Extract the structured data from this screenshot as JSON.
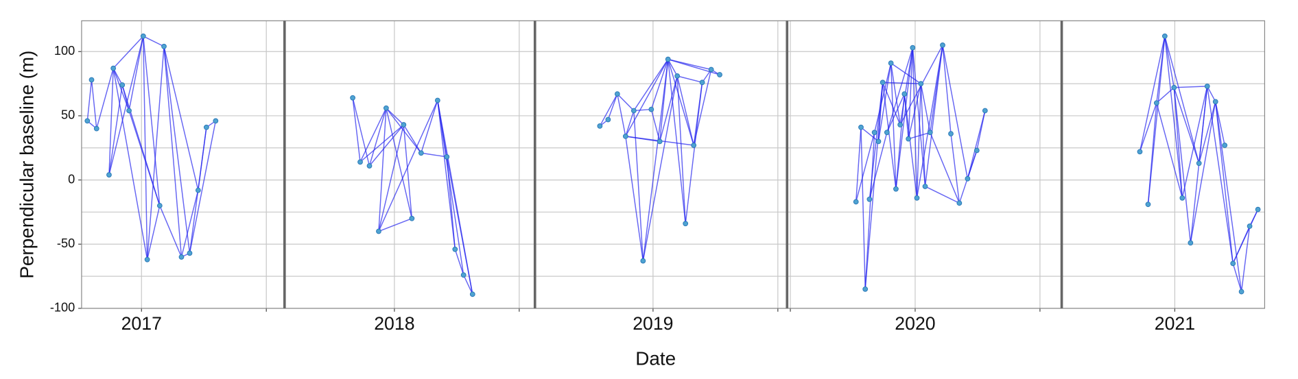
{
  "chart_data": {
    "type": "network",
    "ylabel": "Perpendicular baseline (m)",
    "xlabel": "Date",
    "ylim": [
      -100,
      124
    ],
    "yticks": [
      -100,
      -50,
      0,
      50,
      100
    ],
    "minor_yticks": [
      -75,
      -25,
      25,
      75
    ],
    "grid": true,
    "line_color": "#2424ee",
    "point_color": "#4fa3d1",
    "panels": [
      {
        "xlim": [
          2016.76,
          2017.573
        ],
        "xticks": [
          2017
        ],
        "minor_xticks": [
          2017.5
        ],
        "x": [
          2016.783,
          2016.8,
          2016.82,
          2016.87,
          2016.887,
          2016.923,
          2016.95,
          2017.007,
          2017.023,
          2017.073,
          2017.09,
          2017.16,
          2017.193,
          2017.227,
          2017.26,
          2017.297
        ],
        "y": [
          46,
          78,
          40,
          4,
          87,
          74,
          54,
          112,
          -62,
          -20,
          104,
          -60,
          -57,
          -8,
          41,
          46
        ],
        "edges": [
          [
            0,
            1
          ],
          [
            0,
            2
          ],
          [
            1,
            2
          ],
          [
            2,
            4
          ],
          [
            3,
            4
          ],
          [
            3,
            5
          ],
          [
            4,
            5
          ],
          [
            4,
            6
          ],
          [
            5,
            6
          ],
          [
            6,
            7
          ],
          [
            4,
            7
          ],
          [
            3,
            7
          ],
          [
            7,
            8
          ],
          [
            7,
            10
          ],
          [
            7,
            9
          ],
          [
            5,
            9
          ],
          [
            10,
            8
          ],
          [
            10,
            11
          ],
          [
            10,
            12
          ],
          [
            10,
            13
          ],
          [
            8,
            9
          ],
          [
            9,
            11
          ],
          [
            11,
            12
          ],
          [
            11,
            13
          ],
          [
            12,
            14
          ],
          [
            13,
            14
          ],
          [
            12,
            15
          ],
          [
            14,
            15
          ],
          [
            6,
            9
          ],
          [
            4,
            8
          ]
        ]
      },
      {
        "xlim": [
          2017.56,
          2018.563
        ],
        "xticks": [
          2018
        ],
        "minor_xticks": [
          2018.5
        ],
        "x": [
          2017.833,
          2017.863,
          2017.9,
          2017.937,
          2017.967,
          2018.037,
          2018.07,
          2018.107,
          2018.173,
          2018.21,
          2018.243,
          2018.277,
          2018.313
        ],
        "y": [
          64,
          14,
          11,
          -40,
          56,
          43,
          -30,
          21,
          62,
          18,
          -54,
          -74,
          -89
        ],
        "edges": [
          [
            0,
            1
          ],
          [
            0,
            2
          ],
          [
            1,
            4
          ],
          [
            2,
            4
          ],
          [
            1,
            5
          ],
          [
            2,
            5
          ],
          [
            3,
            4
          ],
          [
            3,
            5
          ],
          [
            4,
            5
          ],
          [
            4,
            7
          ],
          [
            4,
            6
          ],
          [
            5,
            6
          ],
          [
            5,
            7
          ],
          [
            3,
            6
          ],
          [
            3,
            8
          ],
          [
            7,
            8
          ],
          [
            8,
            9
          ],
          [
            8,
            10
          ],
          [
            8,
            11
          ],
          [
            9,
            10
          ],
          [
            9,
            12
          ],
          [
            10,
            11
          ],
          [
            11,
            12
          ],
          [
            8,
            12
          ],
          [
            7,
            9
          ]
        ]
      },
      {
        "xlim": [
          2018.527,
          2019.537
        ],
        "xticks": [
          2019
        ],
        "minor_xticks": [
          2019.5
        ],
        "x": [
          2018.787,
          2018.82,
          2018.857,
          2018.89,
          2018.923,
          2018.96,
          2018.993,
          2019.027,
          2019.06,
          2019.097,
          2019.13,
          2019.163,
          2019.197,
          2019.233,
          2019.267
        ],
        "y": [
          42,
          47,
          67,
          34,
          54,
          -63,
          55,
          30,
          94,
          81,
          -34,
          27,
          76,
          86,
          82
        ],
        "edges": [
          [
            0,
            1
          ],
          [
            1,
            2
          ],
          [
            0,
            2
          ],
          [
            2,
            3
          ],
          [
            3,
            4
          ],
          [
            2,
            4
          ],
          [
            4,
            5
          ],
          [
            3,
            5
          ],
          [
            4,
            6
          ],
          [
            3,
            7
          ],
          [
            4,
            8
          ],
          [
            3,
            8
          ],
          [
            6,
            7
          ],
          [
            6,
            8
          ],
          [
            7,
            8
          ],
          [
            5,
            8
          ],
          [
            5,
            9
          ],
          [
            7,
            9
          ],
          [
            8,
            9
          ],
          [
            8,
            10
          ],
          [
            9,
            10
          ],
          [
            9,
            11
          ],
          [
            8,
            11
          ],
          [
            11,
            12
          ],
          [
            11,
            13
          ],
          [
            8,
            13
          ],
          [
            9,
            12
          ],
          [
            12,
            13
          ],
          [
            13,
            14
          ],
          [
            10,
            12
          ],
          [
            3,
            11
          ],
          [
            8,
            14
          ]
        ]
      },
      {
        "xlim": [
          2019.487,
          2020.587
        ],
        "xticks": [
          2020
        ],
        "minor_xticks": [
          2019.5,
          2020.5
        ],
        "x": [
          2019.763,
          2019.783,
          2019.8,
          2019.817,
          2019.837,
          2019.853,
          2019.87,
          2019.887,
          2019.903,
          2019.923,
          2019.94,
          2019.957,
          2019.973,
          2019.99,
          2020.007,
          2020.023,
          2020.04,
          2020.06,
          2020.11,
          2020.143,
          2020.177,
          2020.21,
          2020.247,
          2020.28
        ],
        "y": [
          -17,
          41,
          -85,
          -15,
          37,
          30,
          76,
          37,
          91,
          -7,
          43,
          67,
          32,
          103,
          -14,
          75,
          -5,
          37,
          105,
          36,
          -18,
          1,
          23,
          54
        ],
        "edges": [
          [
            0,
            1
          ],
          [
            0,
            4
          ],
          [
            1,
            2
          ],
          [
            2,
            4
          ],
          [
            2,
            6
          ],
          [
            3,
            6
          ],
          [
            3,
            7
          ],
          [
            1,
            5
          ],
          [
            4,
            8
          ],
          [
            5,
            8
          ],
          [
            5,
            6
          ],
          [
            6,
            9
          ],
          [
            7,
            13
          ],
          [
            8,
            9
          ],
          [
            8,
            10
          ],
          [
            6,
            10
          ],
          [
            9,
            11
          ],
          [
            9,
            13
          ],
          [
            10,
            13
          ],
          [
            11,
            12
          ],
          [
            11,
            14
          ],
          [
            12,
            13
          ],
          [
            12,
            15
          ],
          [
            13,
            14
          ],
          [
            13,
            16
          ],
          [
            14,
            15
          ],
          [
            15,
            16
          ],
          [
            15,
            17
          ],
          [
            14,
            18
          ],
          [
            16,
            18
          ],
          [
            17,
            18
          ],
          [
            18,
            19
          ],
          [
            18,
            21
          ],
          [
            19,
            20
          ],
          [
            16,
            20
          ],
          [
            20,
            22
          ],
          [
            21,
            22
          ],
          [
            22,
            23
          ],
          [
            21,
            23
          ],
          [
            17,
            20
          ],
          [
            8,
            15
          ],
          [
            10,
            18
          ],
          [
            7,
            11
          ],
          [
            12,
            17
          ],
          [
            6,
            15
          ]
        ]
      },
      {
        "xlim": [
          2020.547,
          2021.36
        ],
        "xticks": [
          2021
        ],
        "minor_xticks": [],
        "x": [
          2020.86,
          2020.893,
          2020.927,
          2020.96,
          2020.997,
          2021.03,
          2021.063,
          2021.097,
          2021.13,
          2021.163,
          2021.2,
          2021.233,
          2021.267,
          2021.3,
          2021.333
        ],
        "y": [
          22,
          -19,
          60,
          112,
          72,
          -14,
          -49,
          13,
          73,
          61,
          27,
          -65,
          -87,
          -36,
          -23
        ],
        "edges": [
          [
            0,
            2
          ],
          [
            0,
            3
          ],
          [
            1,
            2
          ],
          [
            1,
            3
          ],
          [
            2,
            3
          ],
          [
            2,
            4
          ],
          [
            3,
            4
          ],
          [
            2,
            5
          ],
          [
            3,
            5
          ],
          [
            4,
            5
          ],
          [
            3,
            7
          ],
          [
            4,
            6
          ],
          [
            4,
            7
          ],
          [
            4,
            8
          ],
          [
            5,
            8
          ],
          [
            6,
            8
          ],
          [
            6,
            9
          ],
          [
            7,
            8
          ],
          [
            7,
            9
          ],
          [
            8,
            9
          ],
          [
            9,
            10
          ],
          [
            8,
            11
          ],
          [
            9,
            11
          ],
          [
            9,
            12
          ],
          [
            11,
            12
          ],
          [
            11,
            13
          ],
          [
            12,
            13
          ],
          [
            13,
            14
          ],
          [
            11,
            14
          ]
        ]
      }
    ]
  }
}
